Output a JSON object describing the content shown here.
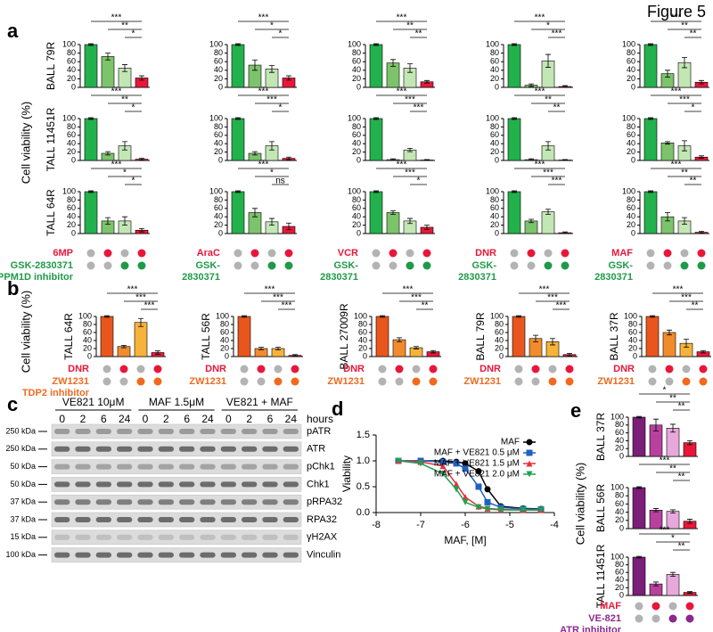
{
  "figure_title": "Figure 5",
  "panel_a": {
    "letter": "a",
    "y_label": "Cell viability (%)",
    "row_labels": [
      "BALL 79R",
      "TALL 11451R",
      "TALL 64R"
    ],
    "drug_labels": [
      "6MP",
      "AraC",
      "VCR",
      "DNR",
      "MAF"
    ],
    "inhibitor_labels": [
      [
        "GSK-2830371",
        "PPM1D inhibitor"
      ],
      [
        "GSK-",
        "2830371"
      ],
      [
        "GSK-",
        "2830371"
      ],
      [
        "GSK-",
        "2830371"
      ],
      [
        "GSK-",
        "2830371"
      ]
    ],
    "drug_color": "#e8173a",
    "inhibitor_color": "#1f9a48",
    "off_color": "#b3b3b3",
    "dot_rows": [
      {
        "on": [
          false,
          true,
          false,
          true
        ],
        "color": "#e8173a"
      },
      {
        "on": [
          false,
          false,
          true,
          true
        ],
        "color": "#1f9a48"
      }
    ]
  },
  "panel_b": {
    "letter": "b",
    "y_label": "Cell viability (%)",
    "drug_labels": [
      "DNR",
      "DNR",
      "DNR",
      "DNR",
      "DNR"
    ],
    "inhibitor_labels": [
      [
        "ZW1231",
        "TDP2 inhibitor"
      ],
      [
        "ZW1231"
      ],
      [
        "ZW1231"
      ],
      [
        "ZW1231"
      ],
      [
        "ZW1231"
      ]
    ],
    "drug_color": "#e8173a",
    "inhibitor_color": "#ef6a1e",
    "off_color": "#b3b3b3",
    "dot_rows": [
      {
        "on": [
          false,
          true,
          false,
          true
        ],
        "color": "#e8173a"
      },
      {
        "on": [
          false,
          false,
          true,
          true
        ],
        "color": "#ef6a1e"
      }
    ]
  },
  "panel_c": {
    "letter": "c",
    "groups": [
      "VE821 10μM",
      "MAF 1.5μM",
      "VE821 + MAF"
    ],
    "timepoints": [
      [
        0,
        2,
        6,
        24
      ],
      [
        0,
        2,
        6,
        24
      ],
      [
        0,
        2,
        6,
        24
      ]
    ],
    "time_unit": "hours",
    "markers": [
      "250 kDa",
      "250 kDa",
      "50 kDa",
      "50 kDa",
      "37 kDa",
      "37 kDa",
      "15 kDa",
      "100 kDa"
    ],
    "proteins": [
      "pATR",
      "ATR",
      "pChk1",
      "Chk1",
      "pRPA32",
      "RPA32",
      "γH2AX",
      "Vinculin"
    ]
  },
  "panel_d": {
    "letter": "d"
  },
  "panel_e": {
    "letter": "e",
    "y_label": "Cell viability (%)",
    "drug_labels": [
      "MAF"
    ],
    "inhibitor_labels": [
      [
        "VE-821",
        "ATR inhibitor"
      ]
    ],
    "drug_color": "#e8173a",
    "inhibitor_color": "#8b2a8b",
    "off_color": "#b3b3b3",
    "dot_rows": [
      {
        "on": [
          false,
          true,
          false,
          true
        ],
        "color": "#e8173a"
      },
      {
        "on": [
          false,
          false,
          true,
          true
        ],
        "color": "#8b2a8b"
      }
    ]
  },
  "chart_data": [
    {
      "type": "bar",
      "values": [
        100,
        72,
        45,
        22
      ],
      "errors": [
        2,
        8,
        8,
        5
      ],
      "colors": [
        "#22b14c",
        "#7cc36b",
        "#c3e6b5",
        "#e8173a"
      ],
      "ylim": [
        0,
        100
      ],
      "yticks": [
        0,
        20,
        40,
        60,
        80,
        100
      ],
      "significance": [
        "***",
        "**",
        "*"
      ]
    },
    {
      "type": "bar",
      "values": [
        100,
        52,
        43,
        22
      ],
      "errors": [
        2,
        12,
        8,
        5
      ],
      "colors": [
        "#22b14c",
        "#7cc36b",
        "#c3e6b5",
        "#e8173a"
      ],
      "ylim": [
        0,
        100
      ],
      "yticks": [
        0,
        20,
        40,
        60,
        80,
        100
      ],
      "significance": [
        "***",
        "*",
        "*"
      ]
    },
    {
      "type": "bar",
      "values": [
        100,
        57,
        45,
        13
      ],
      "errors": [
        2,
        8,
        10,
        3
      ],
      "colors": [
        "#22b14c",
        "#7cc36b",
        "#c3e6b5",
        "#e8173a"
      ],
      "ylim": [
        0,
        100
      ],
      "yticks": [
        0,
        20,
        40,
        60,
        80,
        100
      ],
      "significance": [
        "***",
        "**",
        "**"
      ]
    },
    {
      "type": "bar",
      "values": [
        100,
        5,
        62,
        2
      ],
      "errors": [
        2,
        3,
        15,
        2
      ],
      "colors": [
        "#22b14c",
        "#7cc36b",
        "#c3e6b5",
        "#e8173a"
      ],
      "ylim": [
        0,
        100
      ],
      "yticks": [
        0,
        20,
        40,
        60,
        80,
        100
      ],
      "significance": [
        "***",
        "*",
        "***"
      ]
    },
    {
      "type": "bar",
      "values": [
        100,
        32,
        58,
        12
      ],
      "errors": [
        2,
        8,
        12,
        4
      ],
      "colors": [
        "#22b14c",
        "#7cc36b",
        "#c3e6b5",
        "#e8173a"
      ],
      "ylim": [
        0,
        100
      ],
      "yticks": [
        0,
        20,
        40,
        60,
        80,
        100
      ],
      "significance": [
        "***",
        "**",
        "**"
      ]
    },
    {
      "type": "bar",
      "values": [
        100,
        17,
        35,
        3
      ],
      "errors": [
        2,
        4,
        10,
        2
      ],
      "colors": [
        "#22b14c",
        "#7cc36b",
        "#c3e6b5",
        "#e8173a"
      ],
      "ylim": [
        0,
        100
      ],
      "yticks": [
        0,
        20,
        40,
        60,
        80,
        100
      ],
      "significance": [
        "***",
        "**",
        "*"
      ]
    },
    {
      "type": "bar",
      "values": [
        100,
        17,
        35,
        5
      ],
      "errors": [
        2,
        4,
        10,
        3
      ],
      "colors": [
        "#22b14c",
        "#7cc36b",
        "#c3e6b5",
        "#e8173a"
      ],
      "ylim": [
        0,
        100
      ],
      "yticks": [
        0,
        20,
        40,
        60,
        80,
        100
      ],
      "significance": [
        "***",
        "***",
        "*"
      ]
    },
    {
      "type": "bar",
      "values": [
        100,
        2,
        25,
        1
      ],
      "errors": [
        2,
        2,
        4,
        1
      ],
      "colors": [
        "#22b14c",
        "#7cc36b",
        "#c3e6b5",
        "#e8173a"
      ],
      "ylim": [
        0,
        100
      ],
      "yticks": [
        0,
        20,
        40,
        60,
        80,
        100
      ],
      "significance": [
        "***",
        "***",
        "***"
      ]
    },
    {
      "type": "bar",
      "values": [
        100,
        2,
        35,
        1
      ],
      "errors": [
        2,
        2,
        10,
        1
      ],
      "colors": [
        "#22b14c",
        "#7cc36b",
        "#c3e6b5",
        "#e8173a"
      ],
      "ylim": [
        0,
        100
      ],
      "yticks": [
        0,
        20,
        40,
        60,
        80,
        100
      ],
      "significance": [
        "***",
        "**",
        "**"
      ]
    },
    {
      "type": "bar",
      "values": [
        100,
        42,
        35,
        8
      ],
      "errors": [
        2,
        3,
        12,
        3
      ],
      "colors": [
        "#22b14c",
        "#7cc36b",
        "#c3e6b5",
        "#e8173a"
      ],
      "ylim": [
        0,
        100
      ],
      "yticks": [
        0,
        20,
        40,
        60,
        80,
        100
      ],
      "significance": [
        "***",
        "***",
        "*"
      ]
    },
    {
      "type": "bar",
      "values": [
        100,
        30,
        30,
        8
      ],
      "errors": [
        2,
        8,
        10,
        4
      ],
      "colors": [
        "#22b14c",
        "#7cc36b",
        "#c3e6b5",
        "#e8173a"
      ],
      "ylim": [
        0,
        100
      ],
      "yticks": [
        0,
        20,
        40,
        60,
        80,
        100
      ],
      "significance": [
        "***",
        "*",
        "*"
      ]
    },
    {
      "type": "bar",
      "values": [
        100,
        50,
        28,
        17
      ],
      "errors": [
        2,
        10,
        8,
        8
      ],
      "colors": [
        "#22b14c",
        "#7cc36b",
        "#c3e6b5",
        "#e8173a"
      ],
      "ylim": [
        0,
        100
      ],
      "yticks": [
        0,
        20,
        40,
        60,
        80,
        100
      ],
      "significance": [
        "***",
        "*",
        "ns"
      ]
    },
    {
      "type": "bar",
      "values": [
        100,
        50,
        30,
        15
      ],
      "errors": [
        2,
        4,
        6,
        5
      ],
      "colors": [
        "#22b14c",
        "#7cc36b",
        "#c3e6b5",
        "#e8173a"
      ],
      "ylim": [
        0,
        100
      ],
      "yticks": [
        0,
        20,
        40,
        60,
        80,
        100
      ],
      "significance": [
        "***",
        "***",
        "*"
      ]
    },
    {
      "type": "bar",
      "values": [
        100,
        30,
        52,
        2
      ],
      "errors": [
        2,
        4,
        6,
        2
      ],
      "colors": [
        "#22b14c",
        "#7cc36b",
        "#c3e6b5",
        "#e8173a"
      ],
      "ylim": [
        0,
        100
      ],
      "yticks": [
        0,
        20,
        40,
        60,
        80,
        100
      ],
      "significance": [
        "***",
        "***",
        "***"
      ]
    },
    {
      "type": "bar",
      "values": [
        100,
        40,
        30,
        3
      ],
      "errors": [
        2,
        10,
        8,
        2
      ],
      "colors": [
        "#22b14c",
        "#7cc36b",
        "#c3e6b5",
        "#e8173a"
      ],
      "ylim": [
        0,
        100
      ],
      "yticks": [
        0,
        20,
        40,
        60,
        80,
        100
      ],
      "significance": [
        "***",
        "**",
        "**"
      ]
    },
    {
      "type": "bar",
      "label": "TALL 64R",
      "values": [
        100,
        25,
        85,
        10
      ],
      "errors": [
        2,
        3,
        10,
        4
      ],
      "colors": [
        "#e8561e",
        "#f28b2c",
        "#f7b23a",
        "#e8173a"
      ],
      "ylim": [
        0,
        100
      ],
      "yticks": [
        0,
        20,
        40,
        60,
        80,
        100
      ],
      "significance": [
        "***",
        "***",
        "***"
      ]
    },
    {
      "type": "bar",
      "label": "TALL 56R",
      "values": [
        100,
        20,
        20,
        3
      ],
      "errors": [
        2,
        3,
        3,
        2
      ],
      "colors": [
        "#e8561e",
        "#f28b2c",
        "#f7b23a",
        "#e8173a"
      ],
      "ylim": [
        0,
        100
      ],
      "yticks": [
        0,
        20,
        40,
        60,
        80,
        100
      ],
      "significance": [
        "***",
        "***",
        "***"
      ]
    },
    {
      "type": "bar",
      "label": "BALL 27009R",
      "values": [
        100,
        42,
        22,
        12
      ],
      "errors": [
        2,
        5,
        3,
        3
      ],
      "colors": [
        "#e8561e",
        "#f28b2c",
        "#f7b23a",
        "#e8173a"
      ],
      "ylim": [
        0,
        100
      ],
      "yticks": [
        0,
        20,
        40,
        60,
        80,
        100
      ],
      "significance": [
        "***",
        "***",
        "**"
      ]
    },
    {
      "type": "bar",
      "label": "BALL 79R",
      "values": [
        100,
        45,
        37,
        5
      ],
      "errors": [
        2,
        8,
        8,
        3
      ],
      "colors": [
        "#e8561e",
        "#f28b2c",
        "#f7b23a",
        "#e8173a"
      ],
      "ylim": [
        0,
        100
      ],
      "yticks": [
        0,
        20,
        40,
        60,
        80,
        100
      ],
      "significance": [
        "***",
        "***",
        "***"
      ]
    },
    {
      "type": "bar",
      "label": "BALL 37R",
      "values": [
        100,
        60,
        33,
        12
      ],
      "errors": [
        2,
        6,
        10,
        3
      ],
      "colors": [
        "#e8561e",
        "#f28b2c",
        "#f7b23a",
        "#e8173a"
      ],
      "ylim": [
        0,
        100
      ],
      "yticks": [
        0,
        20,
        40,
        60,
        80,
        100
      ],
      "significance": [
        "***",
        "***",
        "**"
      ]
    },
    {
      "type": "line",
      "x_label": "MAF, [M]",
      "y_label": "Viability",
      "x": [
        -7.5,
        -7,
        -6.5,
        -6.2,
        -6,
        -5.7,
        -5.5,
        -5.2,
        -4.7,
        -4.3
      ],
      "series": [
        {
          "name": "MAF",
          "color": "#000000",
          "marker": "circle",
          "values": [
            1.0,
            1.0,
            1.0,
            0.98,
            0.95,
            0.8,
            0.45,
            0.12,
            0.08,
            0.07
          ]
        },
        {
          "name": "MAF + VE821 0.5 μM",
          "color": "#2060c0",
          "marker": "square",
          "values": [
            1.0,
            1.0,
            0.98,
            0.95,
            0.85,
            0.5,
            0.2,
            0.1,
            0.07,
            0.06
          ]
        },
        {
          "name": "MAF + VE821 1.5 μM",
          "color": "#e8303a",
          "marker": "triangle",
          "values": [
            1.0,
            0.98,
            0.9,
            0.55,
            0.3,
            0.12,
            0.08,
            0.06,
            0.05,
            0.05
          ]
        },
        {
          "name": "MAF + VE821 2.0 μM",
          "color": "#20a050",
          "marker": "triangle-down",
          "values": [
            1.0,
            0.95,
            0.75,
            0.45,
            0.2,
            0.1,
            0.07,
            0.05,
            0.05,
            0.05
          ]
        }
      ],
      "xlim": [
        -8,
        -4
      ],
      "xticks": [
        -8,
        -7,
        -6,
        -5,
        -4
      ],
      "ylim": [
        0,
        1.5
      ],
      "yticks": [
        {
          "value": 0,
          "label": "0.0"
        },
        {
          "value": 0.5,
          "label": "0.5"
        },
        {
          "value": 1,
          "label": "1.0"
        },
        {
          "value": 1.5,
          "label": "1.5"
        }
      ],
      "legend": "upper right"
    },
    {
      "type": "bar",
      "label": "BALL 37R",
      "values": [
        100,
        80,
        72,
        35
      ],
      "errors": [
        2,
        15,
        10,
        5
      ],
      "colors": [
        "#7a1e78",
        "#b8409f",
        "#e8a8dc",
        "#e8173a"
      ],
      "ylim": [
        0,
        100
      ],
      "yticks": [
        0,
        20,
        40,
        60,
        80,
        100
      ],
      "significance": [
        "*",
        "**",
        "**"
      ]
    },
    {
      "type": "bar",
      "label": "BALL 56R",
      "values": [
        100,
        45,
        42,
        18
      ],
      "errors": [
        2,
        4,
        4,
        5
      ],
      "colors": [
        "#7a1e78",
        "#b8409f",
        "#e8a8dc",
        "#e8173a"
      ],
      "ylim": [
        0,
        100
      ],
      "yticks": [
        0,
        20,
        40,
        60,
        80,
        100
      ],
      "significance": [
        "***",
        "**",
        "**"
      ]
    },
    {
      "type": "bar",
      "label": "TALL 11451R",
      "values": [
        100,
        30,
        55,
        8
      ],
      "errors": [
        2,
        5,
        5,
        2
      ],
      "colors": [
        "#7a1e78",
        "#b8409f",
        "#e8a8dc",
        "#e8173a"
      ],
      "ylim": [
        0,
        100
      ],
      "yticks": [
        0,
        20,
        40,
        60,
        80,
        100
      ],
      "significance": [
        "***",
        "*",
        "**"
      ]
    }
  ]
}
